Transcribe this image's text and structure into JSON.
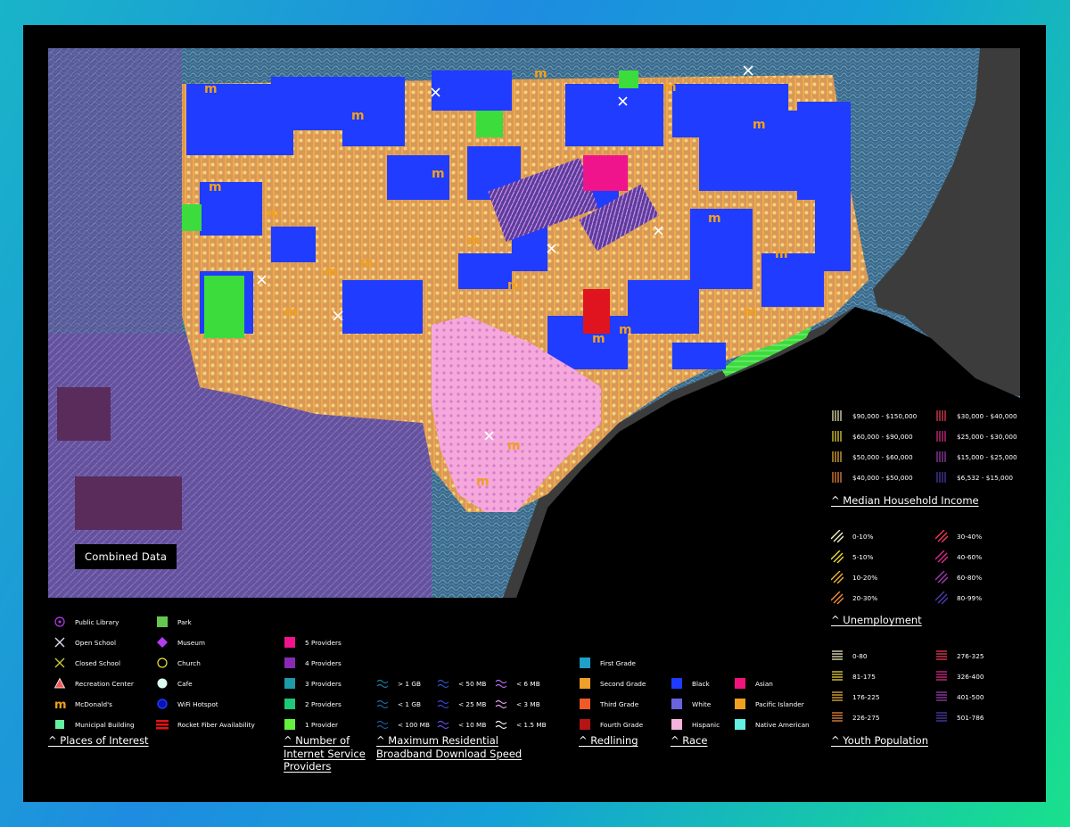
{
  "map_title": "Combined Data",
  "colors": {
    "background_black": "#000000",
    "water": "#000000",
    "land_outside": "#3a3a3a",
    "blue_block": "#1f3cff",
    "pink_block": "#f4a8dc",
    "green_park": "#3ddc3d"
  },
  "places_of_interest": {
    "title": "^ Places of Interest",
    "items_col1": [
      {
        "label": "Public Library",
        "icon": "library-icon"
      },
      {
        "label": "Open School",
        "icon": "open-school-icon"
      },
      {
        "label": "Closed School",
        "icon": "closed-school-icon"
      },
      {
        "label": "Recreation Center",
        "icon": "recreation-center-icon"
      },
      {
        "label": "McDonald's",
        "icon": "mcdonalds-icon"
      },
      {
        "label": "Municipal Building",
        "icon": "municipal-building-icon"
      }
    ],
    "items_col2": [
      {
        "label": "Park",
        "icon": "park-icon"
      },
      {
        "label": "Museum",
        "icon": "museum-icon"
      },
      {
        "label": "Church",
        "icon": "church-icon"
      },
      {
        "label": "Cafe",
        "icon": "cafe-icon"
      },
      {
        "label": "WiFi Hotspot",
        "icon": "wifi-hotspot-icon"
      },
      {
        "label": "Rocket Fiber Availability",
        "icon": "rocket-fiber-icon"
      }
    ]
  },
  "isp": {
    "title": "^ Number of Internet Service Providers",
    "title_lines": [
      "^ Number of",
      "Internet Service",
      "Providers"
    ],
    "items": [
      {
        "label": "5 Providers",
        "color": "#f0148c"
      },
      {
        "label": "4 Providers",
        "color": "#8a2ab4"
      },
      {
        "label": "3 Providers",
        "color": "#1e9aa8"
      },
      {
        "label": "2 Providers",
        "color": "#1ec878"
      },
      {
        "label": "1 Provider",
        "color": "#64f03c"
      }
    ]
  },
  "speed": {
    "title": "^ Maximum Residential Broadband Download Speed",
    "title_lines": [
      "^ Maximum Residential",
      "Broadband Download Speed"
    ],
    "col1": [
      {
        "label": "> 1 GB",
        "color": "#1e7ca0"
      },
      {
        "label": "< 1 GB",
        "color": "#1e6ca0"
      },
      {
        "label": "< 100 MB",
        "color": "#1e5c9c"
      }
    ],
    "col2": [
      {
        "label": "< 50 MB",
        "color": "#2a56c8"
      },
      {
        "label": "< 25 MB",
        "color": "#3a46d8"
      },
      {
        "label": "< 10 MB",
        "color": "#6a4ee0"
      }
    ],
    "col3": [
      {
        "label": "< 6 MB",
        "color": "#b46ee8"
      },
      {
        "label": "< 3 MB",
        "color": "#e0a0f0"
      },
      {
        "label": "< 1.5 MB",
        "color": "#f4f4f4"
      }
    ]
  },
  "redlining": {
    "title": "^ Redlining",
    "items": [
      {
        "label": "First Grade",
        "color": "#1ea0c8"
      },
      {
        "label": "Second Grade",
        "color": "#f0a02a"
      },
      {
        "label": "Third Grade",
        "color": "#f05a28"
      },
      {
        "label": "Fourth Grade",
        "color": "#b41414"
      }
    ]
  },
  "race": {
    "title": "^ Race",
    "col1": [
      {
        "label": "Black",
        "color": "#1e3cff"
      },
      {
        "label": "White",
        "color": "#6a64dc"
      },
      {
        "label": "Hispanic",
        "color": "#f4b4dc"
      }
    ],
    "col2": [
      {
        "label": "Asian",
        "color": "#f0147c"
      },
      {
        "label": "Pacific Islander",
        "color": "#f0a01e"
      },
      {
        "label": "Native American",
        "color": "#64f0e0"
      }
    ]
  },
  "income": {
    "title": "^ Median Household Income",
    "col1": [
      {
        "label": "$90,000 - $150,000",
        "color": "#f4f0c8"
      },
      {
        "label": "$60,000 - $90,000",
        "color": "#f4dc3c"
      },
      {
        "label": "$50,000 - $60,000",
        "color": "#f4b43c"
      },
      {
        "label": "$40,000 - $50,000",
        "color": "#f48c3c"
      }
    ],
    "col2": [
      {
        "label": "$30,000 - $40,000",
        "color": "#f43c5a"
      },
      {
        "label": "$25,000 - $30,000",
        "color": "#e02c8c"
      },
      {
        "label": "$15,000 - $25,000",
        "color": "#a03cb4"
      },
      {
        "label": "$6,532 - $15,000",
        "color": "#503cb4"
      }
    ]
  },
  "unemployment": {
    "title": "^ Unemployment",
    "col1": [
      {
        "label": "0-10%",
        "color": "#f4f0c8"
      },
      {
        "label": "5-10%",
        "color": "#f4dc3c"
      },
      {
        "label": "10-20%",
        "color": "#f4b43c"
      },
      {
        "label": "20-30%",
        "color": "#f48c3c"
      }
    ],
    "col2": [
      {
        "label": "30-40%",
        "color": "#f43c5a"
      },
      {
        "label": "40-60%",
        "color": "#e02c8c"
      },
      {
        "label": "60-80%",
        "color": "#a03cb4"
      },
      {
        "label": "80-99%",
        "color": "#503cb4"
      }
    ]
  },
  "youth": {
    "title": "^ Youth Population",
    "col1": [
      {
        "label": "0-80",
        "color": "#f4f0c8"
      },
      {
        "label": "81-175",
        "color": "#f4dc3c"
      },
      {
        "label": "176-225",
        "color": "#f4b43c"
      },
      {
        "label": "226-275",
        "color": "#f48c3c"
      }
    ],
    "col2": [
      {
        "label": "276-325",
        "color": "#f43c5a"
      },
      {
        "label": "326-400",
        "color": "#e02c8c"
      },
      {
        "label": "401-500",
        "color": "#a03cb4"
      },
      {
        "label": "501-786",
        "color": "#503cb4"
      }
    ]
  }
}
